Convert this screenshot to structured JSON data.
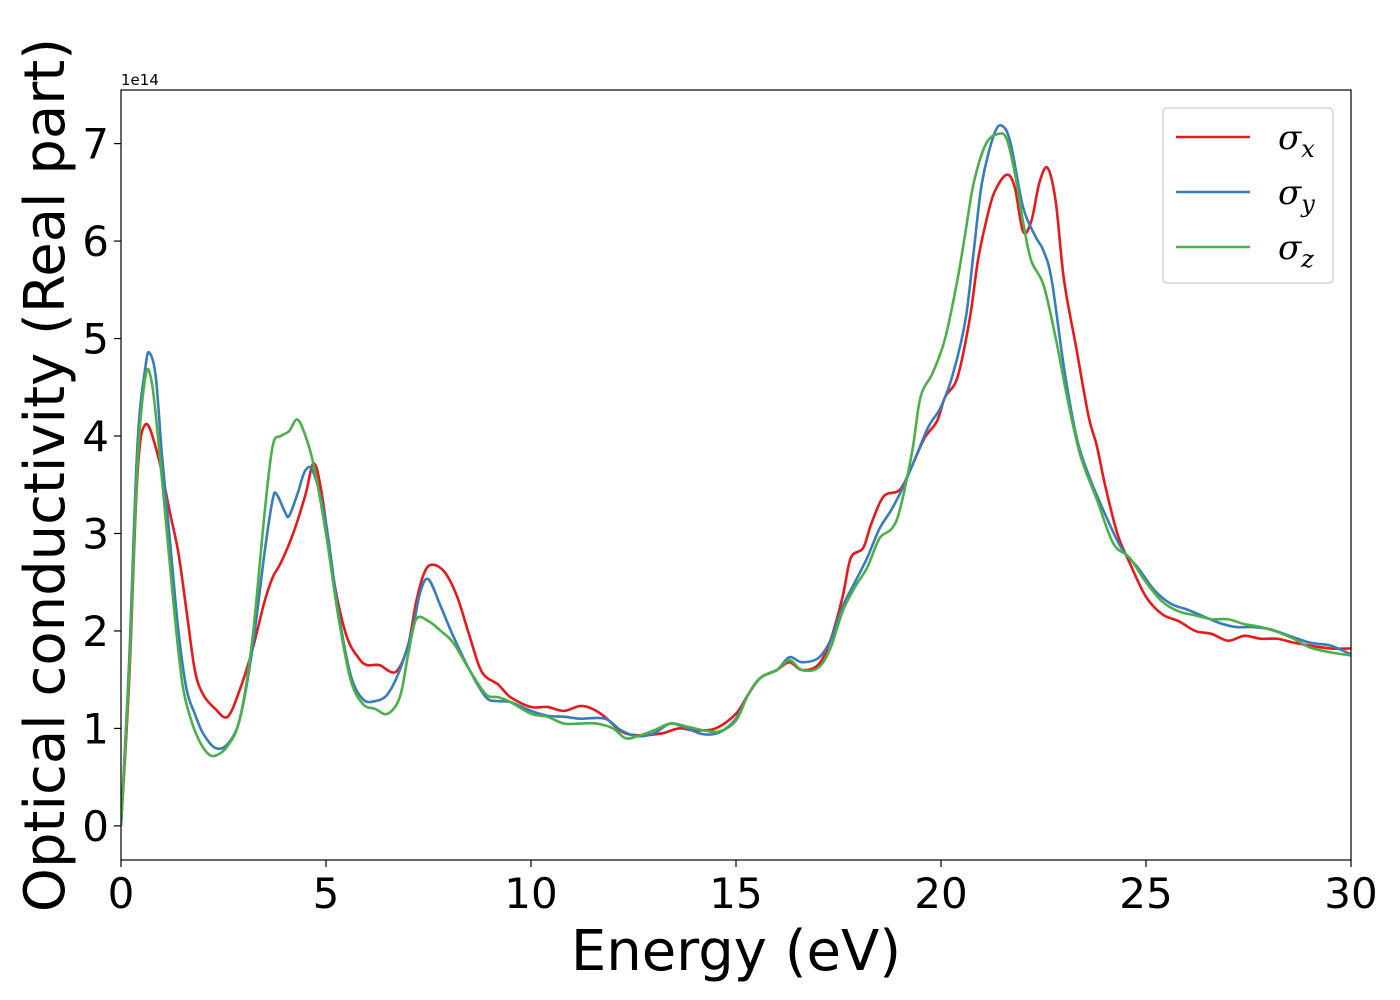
{
  "chart_data": {
    "type": "line",
    "xlabel": "Energy (eV)",
    "ylabel": "Optical conductivity (Real part)",
    "y_offset_label": "1e14",
    "y_multiplier": 100000000000000.0,
    "xlim": [
      0,
      30
    ],
    "ylim": [
      -0.35,
      7.55
    ],
    "xticks": [
      0,
      5,
      10,
      15,
      20,
      25,
      30
    ],
    "yticks": [
      0,
      1,
      2,
      3,
      4,
      5,
      6,
      7
    ],
    "grid": false,
    "legend_position": "top-right",
    "series": [
      {
        "name": "σx",
        "legend_symbol": "σ",
        "legend_sub": "x",
        "color": "#e41a1c",
        "points": [
          [
            0,
            0
          ],
          [
            0.2,
            1.5
          ],
          [
            0.4,
            3.6
          ],
          [
            0.6,
            4.12
          ],
          [
            0.9,
            3.8
          ],
          [
            1.2,
            3.2
          ],
          [
            1.4,
            2.8
          ],
          [
            1.6,
            2.2
          ],
          [
            1.8,
            1.6
          ],
          [
            2.0,
            1.35
          ],
          [
            2.3,
            1.2
          ],
          [
            2.6,
            1.12
          ],
          [
            2.9,
            1.4
          ],
          [
            3.2,
            1.8
          ],
          [
            3.5,
            2.3
          ],
          [
            3.7,
            2.55
          ],
          [
            3.9,
            2.7
          ],
          [
            4.2,
            3.0
          ],
          [
            4.5,
            3.4
          ],
          [
            4.7,
            3.72
          ],
          [
            4.9,
            3.4
          ],
          [
            5.2,
            2.5
          ],
          [
            5.5,
            1.95
          ],
          [
            5.8,
            1.72
          ],
          [
            6.0,
            1.65
          ],
          [
            6.3,
            1.65
          ],
          [
            6.7,
            1.58
          ],
          [
            7.0,
            1.85
          ],
          [
            7.2,
            2.3
          ],
          [
            7.4,
            2.6
          ],
          [
            7.6,
            2.68
          ],
          [
            7.9,
            2.6
          ],
          [
            8.2,
            2.35
          ],
          [
            8.5,
            1.95
          ],
          [
            8.8,
            1.58
          ],
          [
            9.2,
            1.45
          ],
          [
            9.5,
            1.32
          ],
          [
            10.0,
            1.22
          ],
          [
            10.4,
            1.22
          ],
          [
            10.8,
            1.18
          ],
          [
            11.2,
            1.23
          ],
          [
            11.5,
            1.2
          ],
          [
            11.8,
            1.12
          ],
          [
            12.2,
            0.97
          ],
          [
            12.6,
            0.93
          ],
          [
            13.2,
            0.95
          ],
          [
            13.6,
            1.0
          ],
          [
            14.0,
            0.98
          ],
          [
            14.5,
            1.0
          ],
          [
            15.0,
            1.15
          ],
          [
            15.3,
            1.35
          ],
          [
            15.6,
            1.52
          ],
          [
            16.0,
            1.6
          ],
          [
            16.3,
            1.68
          ],
          [
            16.6,
            1.6
          ],
          [
            17.0,
            1.65
          ],
          [
            17.3,
            1.9
          ],
          [
            17.6,
            2.35
          ],
          [
            17.8,
            2.75
          ],
          [
            18.1,
            2.85
          ],
          [
            18.3,
            3.1
          ],
          [
            18.6,
            3.38
          ],
          [
            19.0,
            3.45
          ],
          [
            19.3,
            3.7
          ],
          [
            19.6,
            3.98
          ],
          [
            19.9,
            4.15
          ],
          [
            20.1,
            4.4
          ],
          [
            20.4,
            4.6
          ],
          [
            20.7,
            5.2
          ],
          [
            20.9,
            5.8
          ],
          [
            21.1,
            6.2
          ],
          [
            21.3,
            6.5
          ],
          [
            21.6,
            6.68
          ],
          [
            21.8,
            6.55
          ],
          [
            22.0,
            6.1
          ],
          [
            22.2,
            6.2
          ],
          [
            22.4,
            6.6
          ],
          [
            22.6,
            6.75
          ],
          [
            22.8,
            6.4
          ],
          [
            23.0,
            5.6
          ],
          [
            23.3,
            4.9
          ],
          [
            23.6,
            4.2
          ],
          [
            23.8,
            3.9
          ],
          [
            24.0,
            3.5
          ],
          [
            24.3,
            3.0
          ],
          [
            24.6,
            2.7
          ],
          [
            25.0,
            2.35
          ],
          [
            25.4,
            2.17
          ],
          [
            25.8,
            2.1
          ],
          [
            26.2,
            2.0
          ],
          [
            26.6,
            1.97
          ],
          [
            27.0,
            1.9
          ],
          [
            27.4,
            1.95
          ],
          [
            27.8,
            1.92
          ],
          [
            28.2,
            1.92
          ],
          [
            28.6,
            1.88
          ],
          [
            29.0,
            1.85
          ],
          [
            29.5,
            1.82
          ],
          [
            30.0,
            1.82
          ]
        ]
      },
      {
        "name": "σy",
        "legend_symbol": "σ",
        "legend_sub": "y",
        "color": "#377eb8",
        "points": [
          [
            0,
            0
          ],
          [
            0.2,
            1.7
          ],
          [
            0.4,
            3.9
          ],
          [
            0.6,
            4.72
          ],
          [
            0.7,
            4.85
          ],
          [
            0.85,
            4.6
          ],
          [
            1.0,
            3.8
          ],
          [
            1.2,
            2.9
          ],
          [
            1.4,
            2.0
          ],
          [
            1.6,
            1.4
          ],
          [
            1.8,
            1.15
          ],
          [
            2.0,
            0.95
          ],
          [
            2.3,
            0.8
          ],
          [
            2.6,
            0.84
          ],
          [
            2.9,
            1.1
          ],
          [
            3.2,
            1.8
          ],
          [
            3.5,
            2.8
          ],
          [
            3.7,
            3.35
          ],
          [
            3.8,
            3.4
          ],
          [
            4.0,
            3.22
          ],
          [
            4.1,
            3.18
          ],
          [
            4.3,
            3.4
          ],
          [
            4.5,
            3.65
          ],
          [
            4.7,
            3.62
          ],
          [
            5.0,
            3.1
          ],
          [
            5.3,
            2.2
          ],
          [
            5.6,
            1.55
          ],
          [
            5.9,
            1.3
          ],
          [
            6.2,
            1.28
          ],
          [
            6.5,
            1.35
          ],
          [
            6.8,
            1.6
          ],
          [
            7.1,
            2.0
          ],
          [
            7.3,
            2.4
          ],
          [
            7.5,
            2.53
          ],
          [
            7.8,
            2.25
          ],
          [
            8.1,
            1.95
          ],
          [
            8.5,
            1.6
          ],
          [
            8.9,
            1.32
          ],
          [
            9.2,
            1.28
          ],
          [
            9.5,
            1.27
          ],
          [
            10.0,
            1.18
          ],
          [
            10.4,
            1.13
          ],
          [
            10.8,
            1.12
          ],
          [
            11.2,
            1.1
          ],
          [
            11.8,
            1.1
          ],
          [
            12.2,
            0.98
          ],
          [
            12.6,
            0.92
          ],
          [
            13.0,
            0.95
          ],
          [
            13.4,
            1.05
          ],
          [
            13.8,
            1.0
          ],
          [
            14.2,
            0.94
          ],
          [
            14.6,
            0.96
          ],
          [
            15.0,
            1.1
          ],
          [
            15.3,
            1.35
          ],
          [
            15.6,
            1.52
          ],
          [
            16.0,
            1.6
          ],
          [
            16.3,
            1.73
          ],
          [
            16.6,
            1.68
          ],
          [
            17.0,
            1.72
          ],
          [
            17.3,
            1.9
          ],
          [
            17.6,
            2.25
          ],
          [
            17.9,
            2.5
          ],
          [
            18.2,
            2.75
          ],
          [
            18.5,
            3.05
          ],
          [
            18.8,
            3.25
          ],
          [
            19.1,
            3.5
          ],
          [
            19.4,
            3.8
          ],
          [
            19.7,
            4.1
          ],
          [
            20.0,
            4.3
          ],
          [
            20.3,
            4.65
          ],
          [
            20.6,
            5.2
          ],
          [
            20.8,
            5.9
          ],
          [
            21.0,
            6.6
          ],
          [
            21.3,
            7.1
          ],
          [
            21.5,
            7.18
          ],
          [
            21.7,
            7.0
          ],
          [
            22.0,
            6.35
          ],
          [
            22.3,
            6.05
          ],
          [
            22.5,
            5.9
          ],
          [
            22.7,
            5.6
          ],
          [
            23.0,
            4.7
          ],
          [
            23.3,
            4.0
          ],
          [
            23.6,
            3.6
          ],
          [
            24.0,
            3.2
          ],
          [
            24.4,
            2.85
          ],
          [
            24.8,
            2.65
          ],
          [
            25.2,
            2.42
          ],
          [
            25.6,
            2.28
          ],
          [
            26.0,
            2.22
          ],
          [
            26.4,
            2.15
          ],
          [
            26.8,
            2.08
          ],
          [
            27.2,
            2.04
          ],
          [
            27.6,
            2.04
          ],
          [
            28.0,
            2.02
          ],
          [
            28.5,
            1.95
          ],
          [
            29.0,
            1.88
          ],
          [
            29.5,
            1.85
          ],
          [
            30.0,
            1.76
          ]
        ]
      },
      {
        "name": "σz",
        "legend_symbol": "σ",
        "legend_sub": "z",
        "color": "#4daf4a",
        "points": [
          [
            0,
            0
          ],
          [
            0.2,
            1.6
          ],
          [
            0.4,
            3.7
          ],
          [
            0.6,
            4.62
          ],
          [
            0.75,
            4.55
          ],
          [
            0.9,
            4.0
          ],
          [
            1.1,
            3.1
          ],
          [
            1.3,
            2.2
          ],
          [
            1.5,
            1.45
          ],
          [
            1.7,
            1.1
          ],
          [
            1.9,
            0.88
          ],
          [
            2.1,
            0.75
          ],
          [
            2.3,
            0.72
          ],
          [
            2.6,
            0.82
          ],
          [
            2.9,
            1.1
          ],
          [
            3.2,
            1.9
          ],
          [
            3.5,
            3.2
          ],
          [
            3.7,
            3.9
          ],
          [
            3.9,
            4.0
          ],
          [
            4.1,
            4.05
          ],
          [
            4.3,
            4.17
          ],
          [
            4.5,
            4.0
          ],
          [
            4.7,
            3.7
          ],
          [
            5.0,
            3.0
          ],
          [
            5.3,
            2.15
          ],
          [
            5.6,
            1.5
          ],
          [
            5.9,
            1.25
          ],
          [
            6.2,
            1.2
          ],
          [
            6.5,
            1.15
          ],
          [
            6.8,
            1.32
          ],
          [
            7.0,
            1.75
          ],
          [
            7.2,
            2.12
          ],
          [
            7.5,
            2.1
          ],
          [
            7.8,
            2.0
          ],
          [
            8.1,
            1.88
          ],
          [
            8.5,
            1.6
          ],
          [
            8.9,
            1.35
          ],
          [
            9.2,
            1.32
          ],
          [
            9.5,
            1.27
          ],
          [
            10.0,
            1.15
          ],
          [
            10.4,
            1.12
          ],
          [
            10.8,
            1.05
          ],
          [
            11.2,
            1.05
          ],
          [
            11.6,
            1.05
          ],
          [
            12.0,
            1.0
          ],
          [
            12.3,
            0.9
          ],
          [
            12.6,
            0.92
          ],
          [
            13.0,
            0.98
          ],
          [
            13.4,
            1.05
          ],
          [
            13.8,
            1.02
          ],
          [
            14.2,
            0.98
          ],
          [
            14.6,
            0.97
          ],
          [
            15.0,
            1.08
          ],
          [
            15.3,
            1.35
          ],
          [
            15.6,
            1.52
          ],
          [
            16.0,
            1.6
          ],
          [
            16.3,
            1.7
          ],
          [
            16.6,
            1.6
          ],
          [
            17.0,
            1.62
          ],
          [
            17.3,
            1.82
          ],
          [
            17.6,
            2.2
          ],
          [
            17.9,
            2.45
          ],
          [
            18.2,
            2.65
          ],
          [
            18.5,
            2.95
          ],
          [
            18.8,
            3.05
          ],
          [
            19.0,
            3.25
          ],
          [
            19.3,
            3.85
          ],
          [
            19.5,
            4.4
          ],
          [
            19.8,
            4.65
          ],
          [
            20.1,
            5.0
          ],
          [
            20.4,
            5.6
          ],
          [
            20.6,
            6.1
          ],
          [
            20.8,
            6.6
          ],
          [
            21.1,
            7.0
          ],
          [
            21.4,
            7.1
          ],
          [
            21.6,
            7.05
          ],
          [
            21.8,
            6.7
          ],
          [
            22.0,
            6.2
          ],
          [
            22.2,
            5.8
          ],
          [
            22.5,
            5.55
          ],
          [
            22.8,
            5.0
          ],
          [
            23.1,
            4.35
          ],
          [
            23.4,
            3.8
          ],
          [
            23.8,
            3.35
          ],
          [
            24.2,
            2.9
          ],
          [
            24.6,
            2.75
          ],
          [
            25.0,
            2.5
          ],
          [
            25.4,
            2.3
          ],
          [
            25.8,
            2.2
          ],
          [
            26.2,
            2.16
          ],
          [
            26.6,
            2.12
          ],
          [
            27.0,
            2.12
          ],
          [
            27.4,
            2.07
          ],
          [
            27.8,
            2.04
          ],
          [
            28.2,
            1.99
          ],
          [
            28.6,
            1.92
          ],
          [
            29.0,
            1.83
          ],
          [
            29.5,
            1.78
          ],
          [
            30.0,
            1.75
          ]
        ]
      }
    ]
  }
}
